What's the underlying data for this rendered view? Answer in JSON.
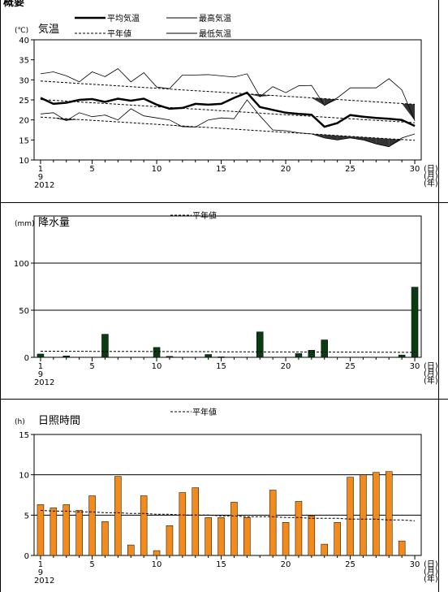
{
  "header_text": "概要",
  "chart_data": [
    {
      "type": "line",
      "title": "気温",
      "unit_label": "(℃)",
      "ylim": [
        10,
        40
      ],
      "y_ticks": [
        10,
        15,
        20,
        25,
        30,
        35,
        40
      ],
      "x_ticks": [
        1,
        5,
        10,
        15,
        20,
        25,
        30
      ],
      "x_suffix": [
        "(日)",
        "(月)",
        "(年)"
      ],
      "month_label": "9",
      "year_label": "2012",
      "x": [
        1,
        2,
        3,
        4,
        5,
        6,
        7,
        8,
        9,
        10,
        11,
        12,
        13,
        14,
        15,
        16,
        17,
        18,
        19,
        20,
        21,
        22,
        23,
        24,
        25,
        26,
        27,
        28,
        29,
        30
      ],
      "series": [
        {
          "name": "平均気温",
          "values": [
            25.5,
            24.0,
            24.3,
            25.0,
            25.2,
            24.5,
            25.3,
            24.8,
            25.3,
            23.8,
            22.8,
            23.0,
            24.0,
            23.8,
            24.0,
            25.5,
            26.8,
            23.2,
            22.5,
            21.8,
            21.5,
            21.3,
            18.3,
            19.2,
            21.2,
            20.8,
            20.5,
            20.3,
            20.0,
            18.5
          ]
        },
        {
          "name": "最高気温",
          "values": [
            31.5,
            32.0,
            31.0,
            29.5,
            32.0,
            30.8,
            32.8,
            29.5,
            31.8,
            28.2,
            27.8,
            31.2,
            31.2,
            31.3,
            31.0,
            30.7,
            31.5,
            25.8,
            28.3,
            26.8,
            28.5,
            28.6,
            23.6,
            25.5,
            28.0,
            28.0,
            28.0,
            30.3,
            27.5,
            19.8
          ]
        },
        {
          "name": "最低気温",
          "values": [
            21.5,
            21.8,
            19.8,
            21.8,
            20.8,
            21.2,
            20.0,
            22.8,
            21.0,
            20.5,
            20.0,
            18.3,
            18.2,
            20.0,
            20.5,
            20.3,
            25.0,
            21.0,
            17.5,
            17.3,
            16.8,
            16.5,
            15.5,
            15.0,
            15.5,
            15.0,
            14.0,
            13.3,
            15.5,
            16.5
          ]
        },
        {
          "name": "平年値",
          "values": [
            29.7,
            29.5,
            29.3,
            29.1,
            28.9,
            28.7,
            28.5,
            28.3,
            28.1,
            27.9,
            27.7,
            27.5,
            27.3,
            27.1,
            26.9,
            26.7,
            26.5,
            26.3,
            26.1,
            25.9,
            25.7,
            25.5,
            25.3,
            25.1,
            24.9,
            24.7,
            24.5,
            24.3,
            24.1,
            23.9
          ]
        },
        {
          "name": "平年値",
          "values": [
            25.1,
            24.9,
            24.7,
            24.5,
            24.3,
            24.1,
            23.9,
            23.7,
            23.5,
            23.3,
            23.1,
            22.9,
            22.7,
            22.5,
            22.3,
            22.1,
            21.9,
            21.7,
            21.5,
            21.3,
            21.1,
            20.9,
            20.7,
            20.5,
            20.3,
            20.1,
            19.9,
            19.7,
            19.5,
            19.3
          ]
        },
        {
          "name": "平年値",
          "values": [
            20.7,
            20.5,
            20.3,
            20.1,
            19.9,
            19.7,
            19.5,
            19.3,
            19.1,
            18.9,
            18.7,
            18.5,
            18.3,
            18.1,
            17.9,
            17.7,
            17.5,
            17.3,
            17.1,
            16.9,
            16.7,
            16.5,
            16.3,
            16.1,
            15.9,
            15.7,
            15.5,
            15.3,
            15.1,
            14.9
          ]
        }
      ],
      "legend": [
        {
          "label": "平均気温",
          "style": "thick"
        },
        {
          "label": "最高気温",
          "style": "solid"
        },
        {
          "label": "平年値",
          "style": "dashed"
        },
        {
          "label": "最低気温",
          "style": "solid"
        }
      ]
    },
    {
      "type": "bar",
      "title": "降水量",
      "unit_label": "(mm)",
      "ylim": [
        0,
        100
      ],
      "y_ticks": [
        0,
        50,
        100
      ],
      "x_ticks": [
        1,
        5,
        10,
        15,
        20,
        25,
        30
      ],
      "x_suffix": [
        "(日)",
        "(月)",
        "(年)"
      ],
      "month_label": "9",
      "year_label": "2012",
      "bar_color": "#0b3b12",
      "x": [
        1,
        2,
        3,
        4,
        5,
        6,
        7,
        8,
        9,
        10,
        11,
        12,
        13,
        14,
        15,
        16,
        17,
        18,
        19,
        20,
        21,
        22,
        23,
        24,
        25,
        26,
        27,
        28,
        29,
        30
      ],
      "values": [
        3.5,
        0,
        1.5,
        0,
        0,
        24.5,
        0,
        0,
        0,
        10.5,
        1.0,
        0,
        0,
        3.0,
        0.5,
        0,
        0,
        27.0,
        0,
        0,
        4.0,
        7.5,
        18.5,
        0,
        0,
        0,
        0,
        0,
        2.5,
        74.5
      ],
      "normal_values": [
        6.5,
        6.5,
        6.4,
        6.4,
        6.3,
        6.3,
        6.3,
        6.2,
        6.2,
        6.1,
        6.1,
        6.0,
        6.0,
        6.0,
        5.9,
        5.9,
        5.8,
        5.8,
        5.7,
        5.7,
        5.7,
        5.6,
        5.6,
        5.5,
        5.5,
        5.5,
        5.4,
        5.4,
        5.3,
        5.3
      ],
      "legend": [
        {
          "label": "平年値",
          "style": "dashed"
        }
      ]
    },
    {
      "type": "bar",
      "title": "日照時間",
      "unit_label": "(h)",
      "ylim": [
        0,
        15
      ],
      "y_ticks": [
        0,
        5,
        10,
        15
      ],
      "x_ticks": [
        1,
        5,
        10,
        15,
        20,
        25,
        30
      ],
      "x_suffix": [
        "(日)",
        "(月)",
        "(年)"
      ],
      "month_label": "9",
      "year_label": "2012",
      "bar_color": "#f28a1c",
      "x": [
        1,
        2,
        3,
        4,
        5,
        6,
        7,
        8,
        9,
        10,
        11,
        12,
        13,
        14,
        15,
        16,
        17,
        18,
        19,
        20,
        21,
        22,
        23,
        24,
        25,
        26,
        27,
        28,
        29,
        30
      ],
      "values": [
        6.3,
        5.9,
        6.3,
        5.6,
        7.4,
        4.2,
        9.8,
        1.3,
        7.4,
        0.6,
        3.7,
        7.8,
        8.4,
        4.7,
        4.7,
        6.6,
        4.7,
        0,
        8.1,
        4.1,
        6.7,
        4.9,
        1.4,
        4.1,
        9.7,
        10.0,
        10.3,
        10.4,
        1.8,
        0
      ],
      "normal_values": [
        5.6,
        5.5,
        5.5,
        5.4,
        5.4,
        5.3,
        5.3,
        5.2,
        5.2,
        5.1,
        5.1,
        5.0,
        5.0,
        5.0,
        4.9,
        4.9,
        4.8,
        4.8,
        4.8,
        4.7,
        4.7,
        4.6,
        4.6,
        4.6,
        4.5,
        4.5,
        4.5,
        4.4,
        4.4,
        4.3
      ],
      "legend": [
        {
          "label": "平年値",
          "style": "dashed"
        }
      ]
    }
  ]
}
